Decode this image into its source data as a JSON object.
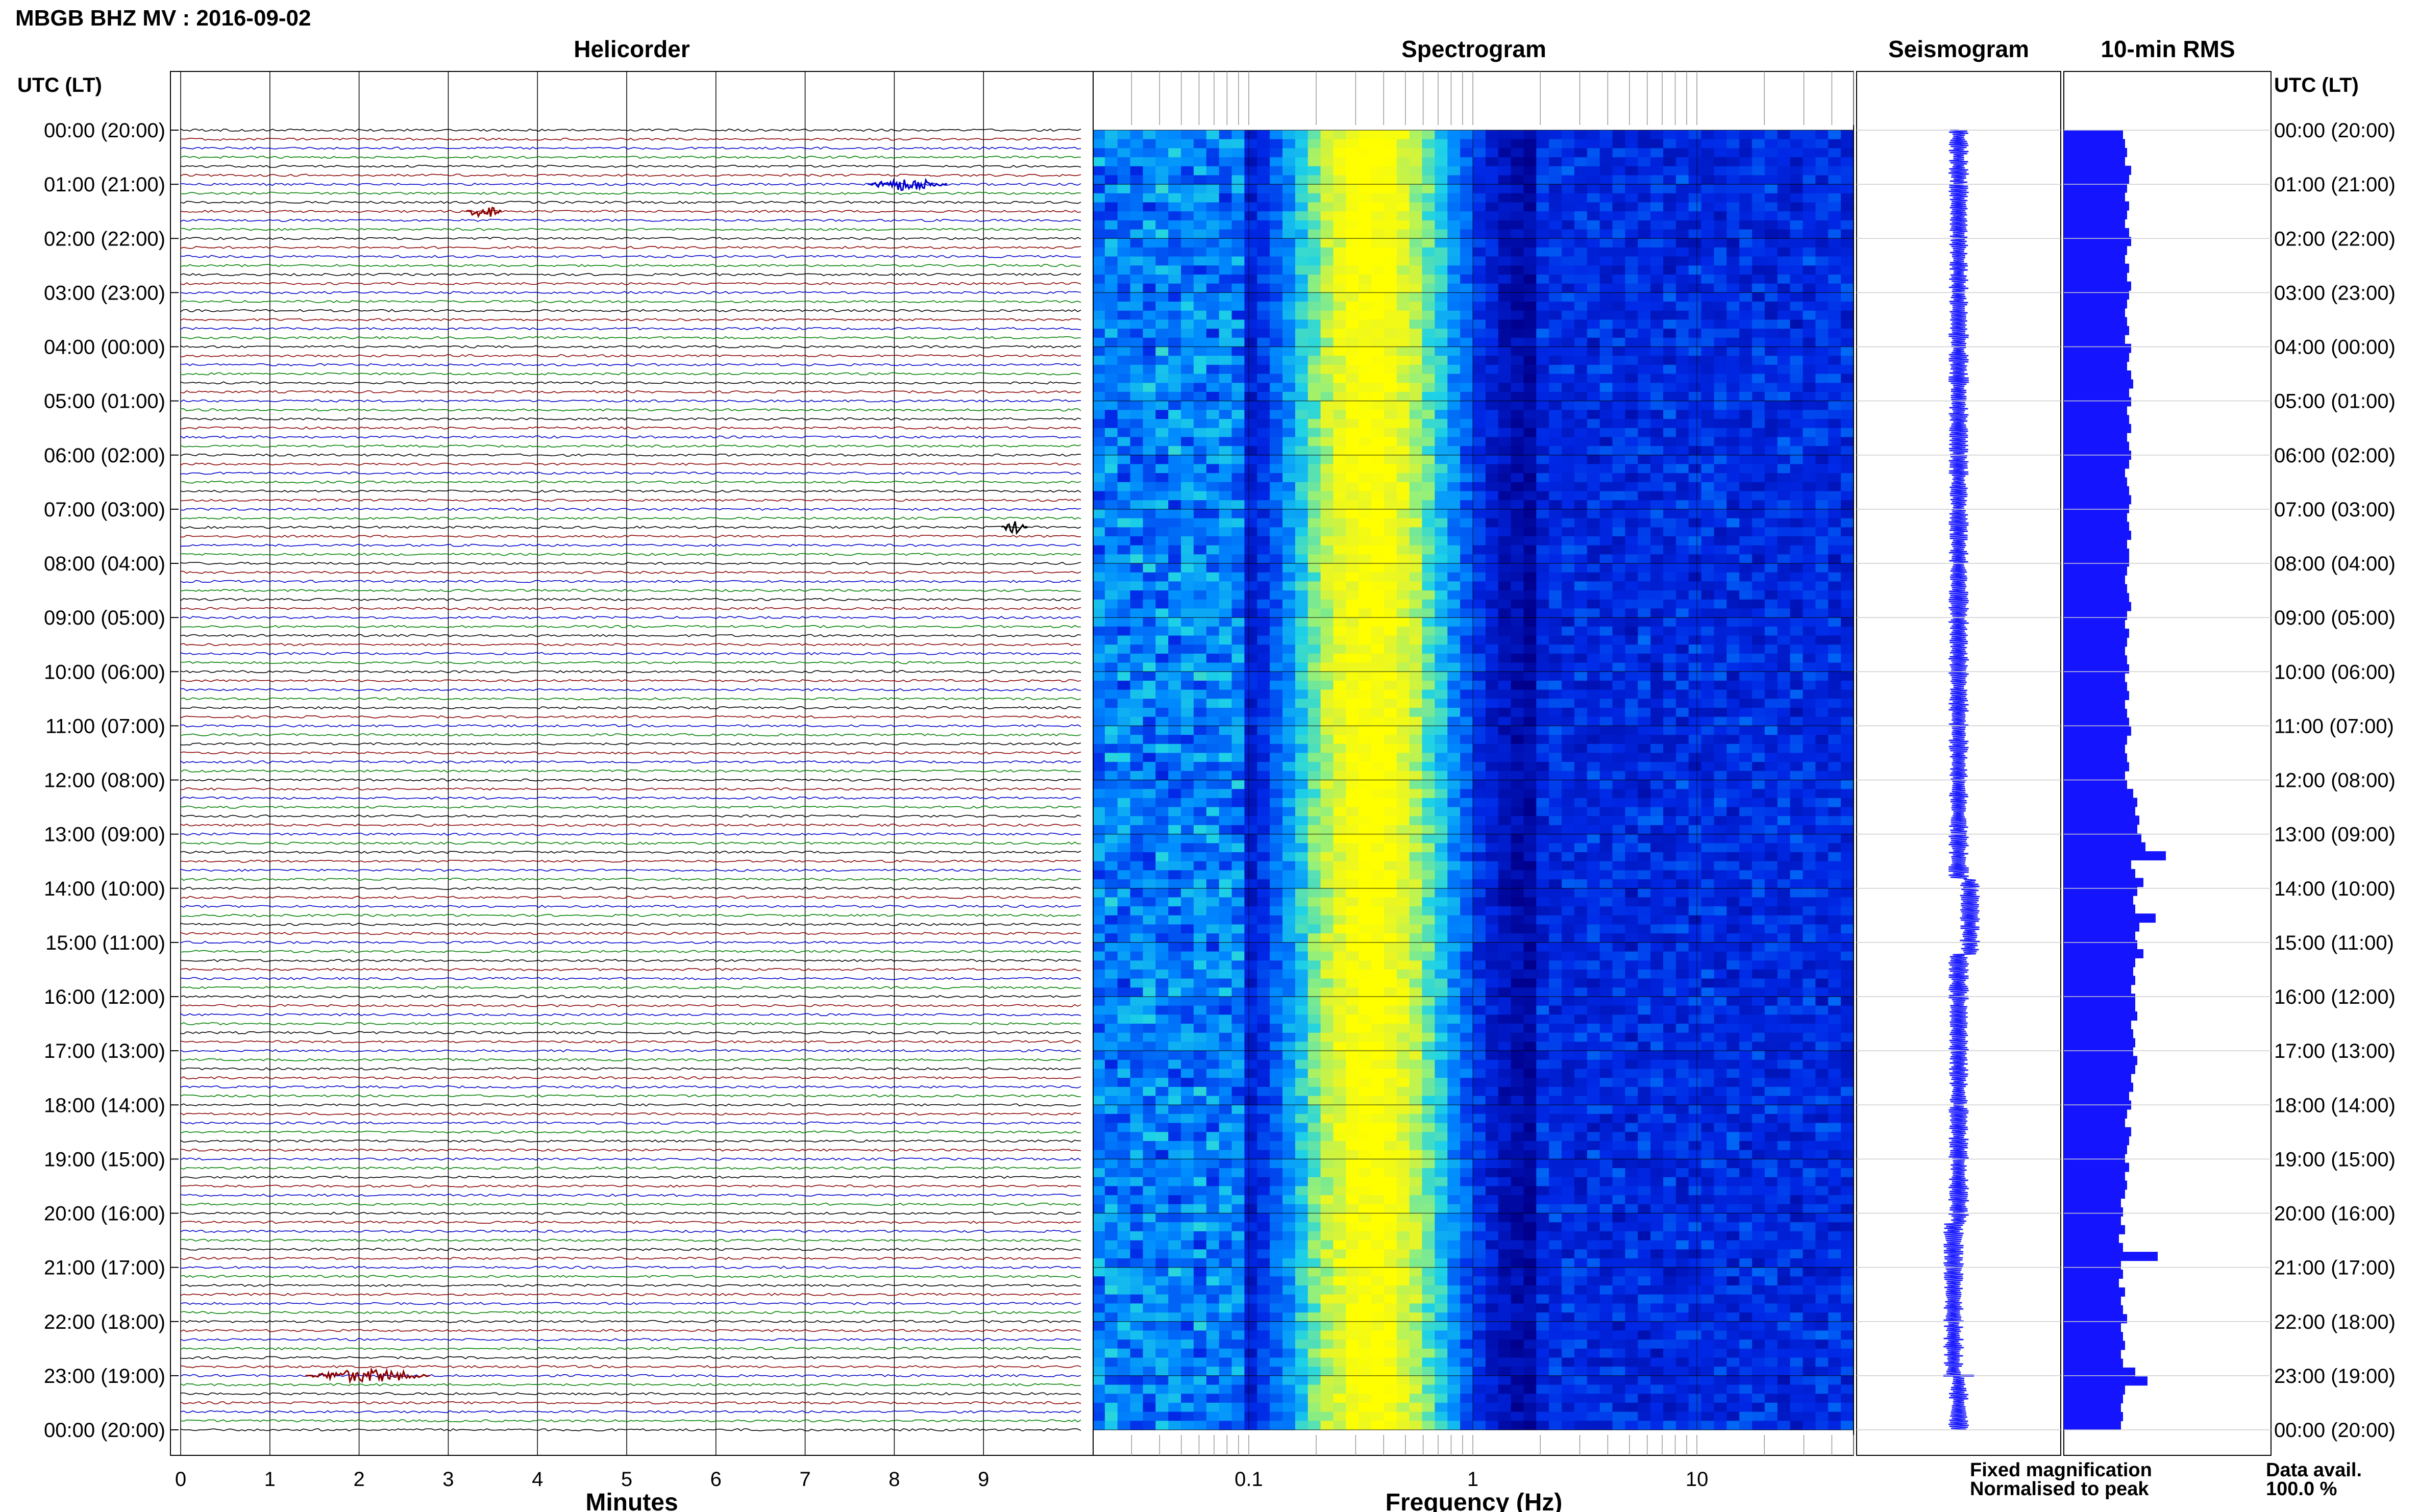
{
  "header": {
    "title": "MBGB BHZ MV : 2016-09-02"
  },
  "panels": {
    "helicorder": "Helicorder",
    "spectrogram": "Spectrogram",
    "seismogram": "Seismogram",
    "rms": "10-min RMS"
  },
  "axes": {
    "utc_label_left": "UTC (LT)",
    "utc_label_right": "UTC (LT)",
    "minutes_label": "Minutes",
    "frequency_label": "Frequency (Hz)"
  },
  "legend": {
    "fixed": "Fixed magnification",
    "normalised": "Normalised to peak",
    "fixed_color": "#0000ff",
    "normalised_color": "#ff0000"
  },
  "availability": {
    "label": "Data avail.",
    "value": "100.0 %"
  },
  "chart_data": {
    "type": "heatmap",
    "time_labels": [
      "00:00 (20:00)",
      "01:00 (21:00)",
      "02:00 (22:00)",
      "03:00 (23:00)",
      "04:00 (00:00)",
      "05:00 (01:00)",
      "06:00 (02:00)",
      "07:00 (03:00)",
      "08:00 (04:00)",
      "09:00 (05:00)",
      "10:00 (06:00)",
      "11:00 (07:00)",
      "12:00 (08:00)",
      "13:00 (09:00)",
      "14:00 (10:00)",
      "15:00 (11:00)",
      "16:00 (12:00)",
      "17:00 (13:00)",
      "18:00 (14:00)",
      "19:00 (15:00)",
      "20:00 (16:00)",
      "21:00 (17:00)",
      "22:00 (18:00)",
      "23:00 (19:00)",
      "00:00 (20:00)"
    ],
    "minute_ticks": [
      "0",
      "1",
      "2",
      "3",
      "4",
      "5",
      "6",
      "7",
      "8",
      "9"
    ],
    "frequency_ticks": [
      {
        "label": "0.1",
        "value": 0.1
      },
      {
        "label": "1",
        "value": 1
      },
      {
        "label": "10",
        "value": 10
      }
    ],
    "frequency_range_hz": [
      0.02,
      50
    ],
    "minute_range": [
      0,
      10
    ],
    "trace_colors": [
      "#000000",
      "#8b0000",
      "#0000cc",
      "#008000"
    ],
    "traces_per_hour": 6,
    "helicorder_events": [
      {
        "hour": 1.0,
        "minute_start": 7.7,
        "minute_end": 8.6,
        "color_index": 2
      },
      {
        "hour": 1.5,
        "minute_start": 3.2,
        "minute_end": 3.6,
        "color_index": 1
      },
      {
        "hour": 7.33,
        "minute_start": 9.2,
        "minute_end": 9.5,
        "color_index": 0
      },
      {
        "hour": 23.0,
        "minute_start": 1.4,
        "minute_end": 2.8,
        "color_index": 1
      }
    ],
    "rms_relative": [
      0.58,
      0.6,
      0.62,
      0.6,
      0.66,
      0.64,
      0.62,
      0.6,
      0.64,
      0.62,
      0.6,
      0.64,
      0.66,
      0.62,
      0.6,
      0.64,
      0.62,
      0.66,
      0.64,
      0.62,
      0.6,
      0.62,
      0.64,
      0.6,
      0.66,
      0.64,
      0.62,
      0.66,
      0.68,
      0.64,
      0.66,
      0.62,
      0.64,
      0.66,
      0.62,
      0.64,
      0.66,
      0.64,
      0.6,
      0.62,
      0.64,
      0.66,
      0.64,
      0.62,
      0.64,
      0.66,
      0.62,
      0.64,
      0.64,
      0.62,
      0.6,
      0.62,
      0.64,
      0.66,
      0.62,
      0.6,
      0.64,
      0.62,
      0.6,
      0.62,
      0.64,
      0.6,
      0.62,
      0.64,
      0.6,
      0.62,
      0.64,
      0.66,
      0.62,
      0.6,
      0.62,
      0.64,
      0.6,
      0.62,
      0.68,
      0.72,
      0.7,
      0.74,
      0.72,
      0.76,
      0.8,
      1.0,
      0.66,
      0.7,
      0.78,
      0.72,
      0.68,
      0.7,
      0.9,
      0.74,
      0.7,
      0.72,
      0.78,
      0.7,
      0.68,
      0.7,
      0.66,
      0.7,
      0.7,
      0.72,
      0.66,
      0.68,
      0.7,
      0.68,
      0.72,
      0.7,
      0.66,
      0.68,
      0.64,
      0.66,
      0.62,
      0.6,
      0.66,
      0.64,
      0.62,
      0.6,
      0.64,
      0.6,
      0.62,
      0.6,
      0.56,
      0.58,
      0.56,
      0.6,
      0.54,
      0.58,
      0.92,
      0.56,
      0.58,
      0.54,
      0.6,
      0.56,
      0.58,
      0.62,
      0.56,
      0.58,
      0.6,
      0.56,
      0.58,
      0.7,
      0.82,
      0.6,
      0.58,
      0.56,
      0.58,
      0.56
    ]
  }
}
